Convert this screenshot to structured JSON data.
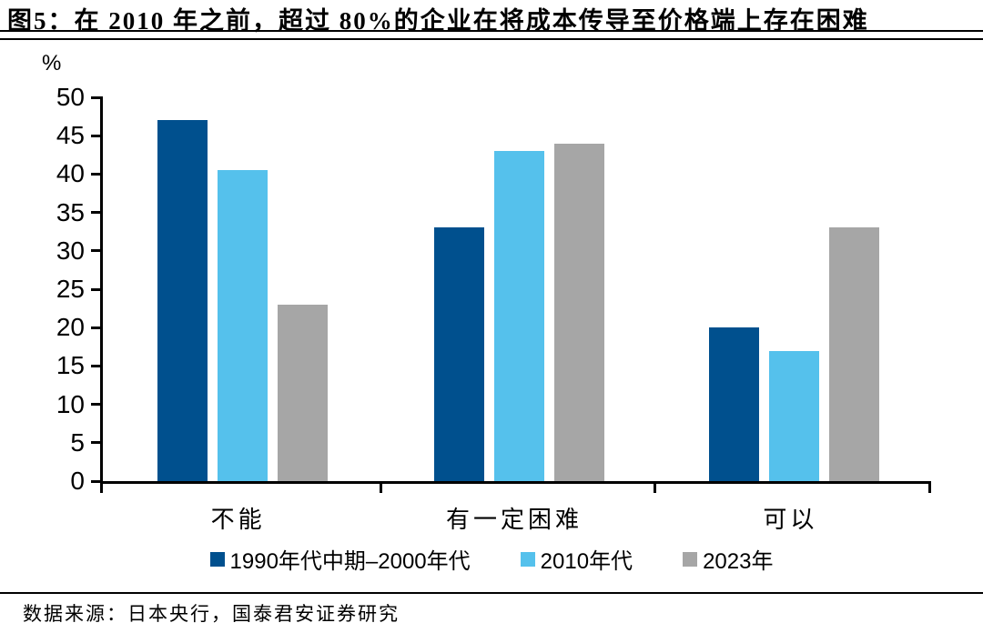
{
  "header": {
    "title": "图5：在 2010 年之前，超过 80%的企业在将成本传导至价格端上存在困难"
  },
  "footer": {
    "source": "数据来源：日本央行，国泰君安证券研究"
  },
  "chart_data": {
    "type": "bar",
    "title": "在 2010 年之前，超过 80%的企业在将成本传导至价格端上存在困难",
    "categories": [
      "不能",
      "有一定困难",
      "可以"
    ],
    "series": [
      {
        "name": "1990年代中期–2000年代",
        "color": "#00508E",
        "values": [
          47,
          33,
          20
        ]
      },
      {
        "name": "2010年代",
        "color": "#55C1EC",
        "values": [
          40.5,
          43,
          17
        ]
      },
      {
        "name": "2023年",
        "color": "#A6A6A6",
        "values": [
          23,
          44,
          33
        ]
      }
    ],
    "xlabel": "",
    "ylabel": "%",
    "ylim": [
      0,
      50
    ],
    "ytick_step": 5,
    "grid": false,
    "legend_position": "bottom"
  }
}
